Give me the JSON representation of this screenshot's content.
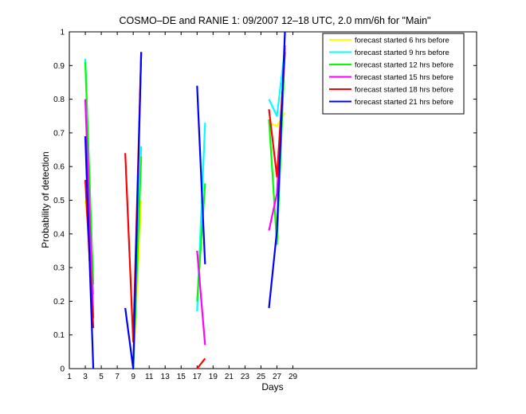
{
  "chart_data": {
    "type": "line",
    "title": "COSMO–DE and RANIE 1: 09/2007 12–18 UTC, 2.0 mm/6h for \"Main\"",
    "xlabel": "Days",
    "ylabel": "Probability of detection",
    "xlim": [
      1,
      52
    ],
    "ylim": [
      0,
      1
    ],
    "xticks": [
      1,
      3,
      5,
      7,
      9,
      11,
      13,
      15,
      17,
      19,
      21,
      23,
      25,
      27,
      29
    ],
    "xtick_labels": [
      "1",
      "3",
      "5",
      "7",
      "9",
      "11",
      "13",
      "15",
      "17",
      "19",
      "21",
      "23",
      "25",
      "27",
      "29"
    ],
    "yticks": [
      0,
      0.1,
      0.2,
      0.3,
      0.4,
      0.5,
      0.6,
      0.7,
      0.8,
      0.9,
      1
    ],
    "ytick_labels": [
      "0",
      "0.1",
      "0.2",
      "0.3",
      "0.4",
      "0.5",
      "0.6",
      "0.7",
      "0.8",
      "0.9",
      "1"
    ],
    "grid": false,
    "legend_position": "top-right",
    "series": [
      {
        "name": "forecast started 6 hrs before",
        "color": "#ffff00",
        "segments": [
          [
            [
              3,
              0.5
            ],
            [
              3.5,
              0.4
            ],
            [
              4,
              0.3
            ]
          ],
          [
            [
              9,
              0.0
            ],
            [
              10,
              0.5
            ]
          ],
          [
            [
              26,
              0.73
            ],
            [
              27,
              0.72
            ],
            [
              28,
              0.76
            ]
          ]
        ]
      },
      {
        "name": "forecast started 9 hrs before",
        "color": "#00ffff",
        "segments": [
          [
            [
              3,
              0.92
            ],
            [
              4,
              0.22
            ]
          ],
          [
            [
              9,
              0.0
            ],
            [
              10,
              0.66
            ]
          ],
          [
            [
              17,
              0.17
            ],
            [
              18,
              0.73
            ]
          ],
          [
            [
              26,
              0.8
            ],
            [
              27,
              0.75
            ],
            [
              28,
              0.95
            ]
          ]
        ]
      },
      {
        "name": "forecast started 12 hrs before",
        "color": "#00ff00",
        "segments": [
          [
            [
              3,
              0.91
            ],
            [
              4,
              0.25
            ]
          ],
          [
            [
              9,
              0.0
            ],
            [
              10,
              0.63
            ]
          ],
          [
            [
              17,
              0.2
            ],
            [
              18,
              0.55
            ]
          ],
          [
            [
              26,
              0.74
            ],
            [
              27,
              0.37
            ],
            [
              28,
              0.95
            ]
          ]
        ]
      },
      {
        "name": "forecast started 15 hrs before",
        "color": "#ff00ff",
        "segments": [
          [
            [
              3,
              0.8
            ],
            [
              4,
              0.15
            ]
          ],
          [
            [
              17,
              0.35
            ],
            [
              18,
              0.07
            ]
          ],
          [
            [
              26,
              0.41
            ],
            [
              27,
              0.52
            ],
            [
              28,
              0.96
            ]
          ]
        ]
      },
      {
        "name": "forecast started 18 hrs before",
        "color": "#ff0000",
        "segments": [
          [
            [
              3,
              0.56
            ],
            [
              4,
              0.12
            ]
          ],
          [
            [
              8,
              0.64
            ],
            [
              9,
              0.08
            ],
            [
              10,
              0.94
            ]
          ],
          [
            [
              17,
              0.0
            ],
            [
              18,
              0.03
            ]
          ],
          [
            [
              26,
              0.77
            ],
            [
              27,
              0.57
            ],
            [
              28,
              0.94
            ]
          ]
        ]
      },
      {
        "name": "forecast started 21 hrs before",
        "color": "#0000ff",
        "segments": [
          [
            [
              3,
              0.69
            ],
            [
              4,
              0.0
            ]
          ],
          [
            [
              8,
              0.18
            ],
            [
              9,
              0.0
            ],
            [
              10,
              0.94
            ]
          ],
          [
            [
              17,
              0.84
            ],
            [
              18,
              0.31
            ]
          ],
          [
            [
              26,
              0.18
            ],
            [
              27,
              0.41
            ],
            [
              28,
              1.0
            ]
          ]
        ]
      }
    ]
  }
}
